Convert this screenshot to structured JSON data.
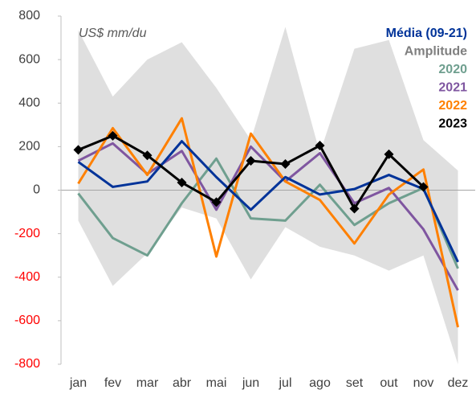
{
  "chart_data": {
    "type": "line",
    "annotation": "US$ mm/du",
    "categories": [
      "jan",
      "fev",
      "mar",
      "abr",
      "mai",
      "jun",
      "jul",
      "ago",
      "set",
      "out",
      "nov",
      "dez"
    ],
    "ylim": [
      -800,
      800
    ],
    "yticks": [
      -800,
      -600,
      -400,
      -200,
      0,
      200,
      400,
      600,
      800
    ],
    "negative_tick_color": "#ff0000",
    "series": [
      {
        "name": "Média (09-21)",
        "color": "#003399",
        "values": [
          130,
          15,
          40,
          225,
          60,
          -90,
          60,
          -20,
          5,
          70,
          5,
          -330
        ]
      },
      {
        "name": "Amplitude",
        "color": "#d9d9d9",
        "label_color": "#7f7f7f",
        "kind": "band",
        "upper": [
          735,
          430,
          600,
          680,
          470,
          230,
          750,
          170,
          650,
          690,
          230,
          90
        ],
        "lower": [
          -140,
          -440,
          -290,
          -80,
          -130,
          -410,
          -170,
          -260,
          -300,
          -370,
          -300,
          -800
        ]
      },
      {
        "name": "2020",
        "color": "#6f9f8f",
        "values": [
          -15,
          -220,
          -300,
          -60,
          145,
          -130,
          -140,
          25,
          -160,
          -60,
          10,
          -360
        ]
      },
      {
        "name": "2021",
        "color": "#7f56a0",
        "values": [
          135,
          215,
          75,
          180,
          -90,
          200,
          40,
          170,
          -60,
          10,
          -180,
          -460
        ]
      },
      {
        "name": "2022",
        "color": "#ff8000",
        "values": [
          30,
          285,
          70,
          330,
          -305,
          260,
          40,
          -45,
          -245,
          -20,
          95,
          -630
        ]
      },
      {
        "name": "2023",
        "color": "#000000",
        "marker": "diamond",
        "values": [
          185,
          250,
          160,
          35,
          -55,
          135,
          120,
          205,
          -85,
          165,
          15,
          null
        ]
      }
    ]
  }
}
